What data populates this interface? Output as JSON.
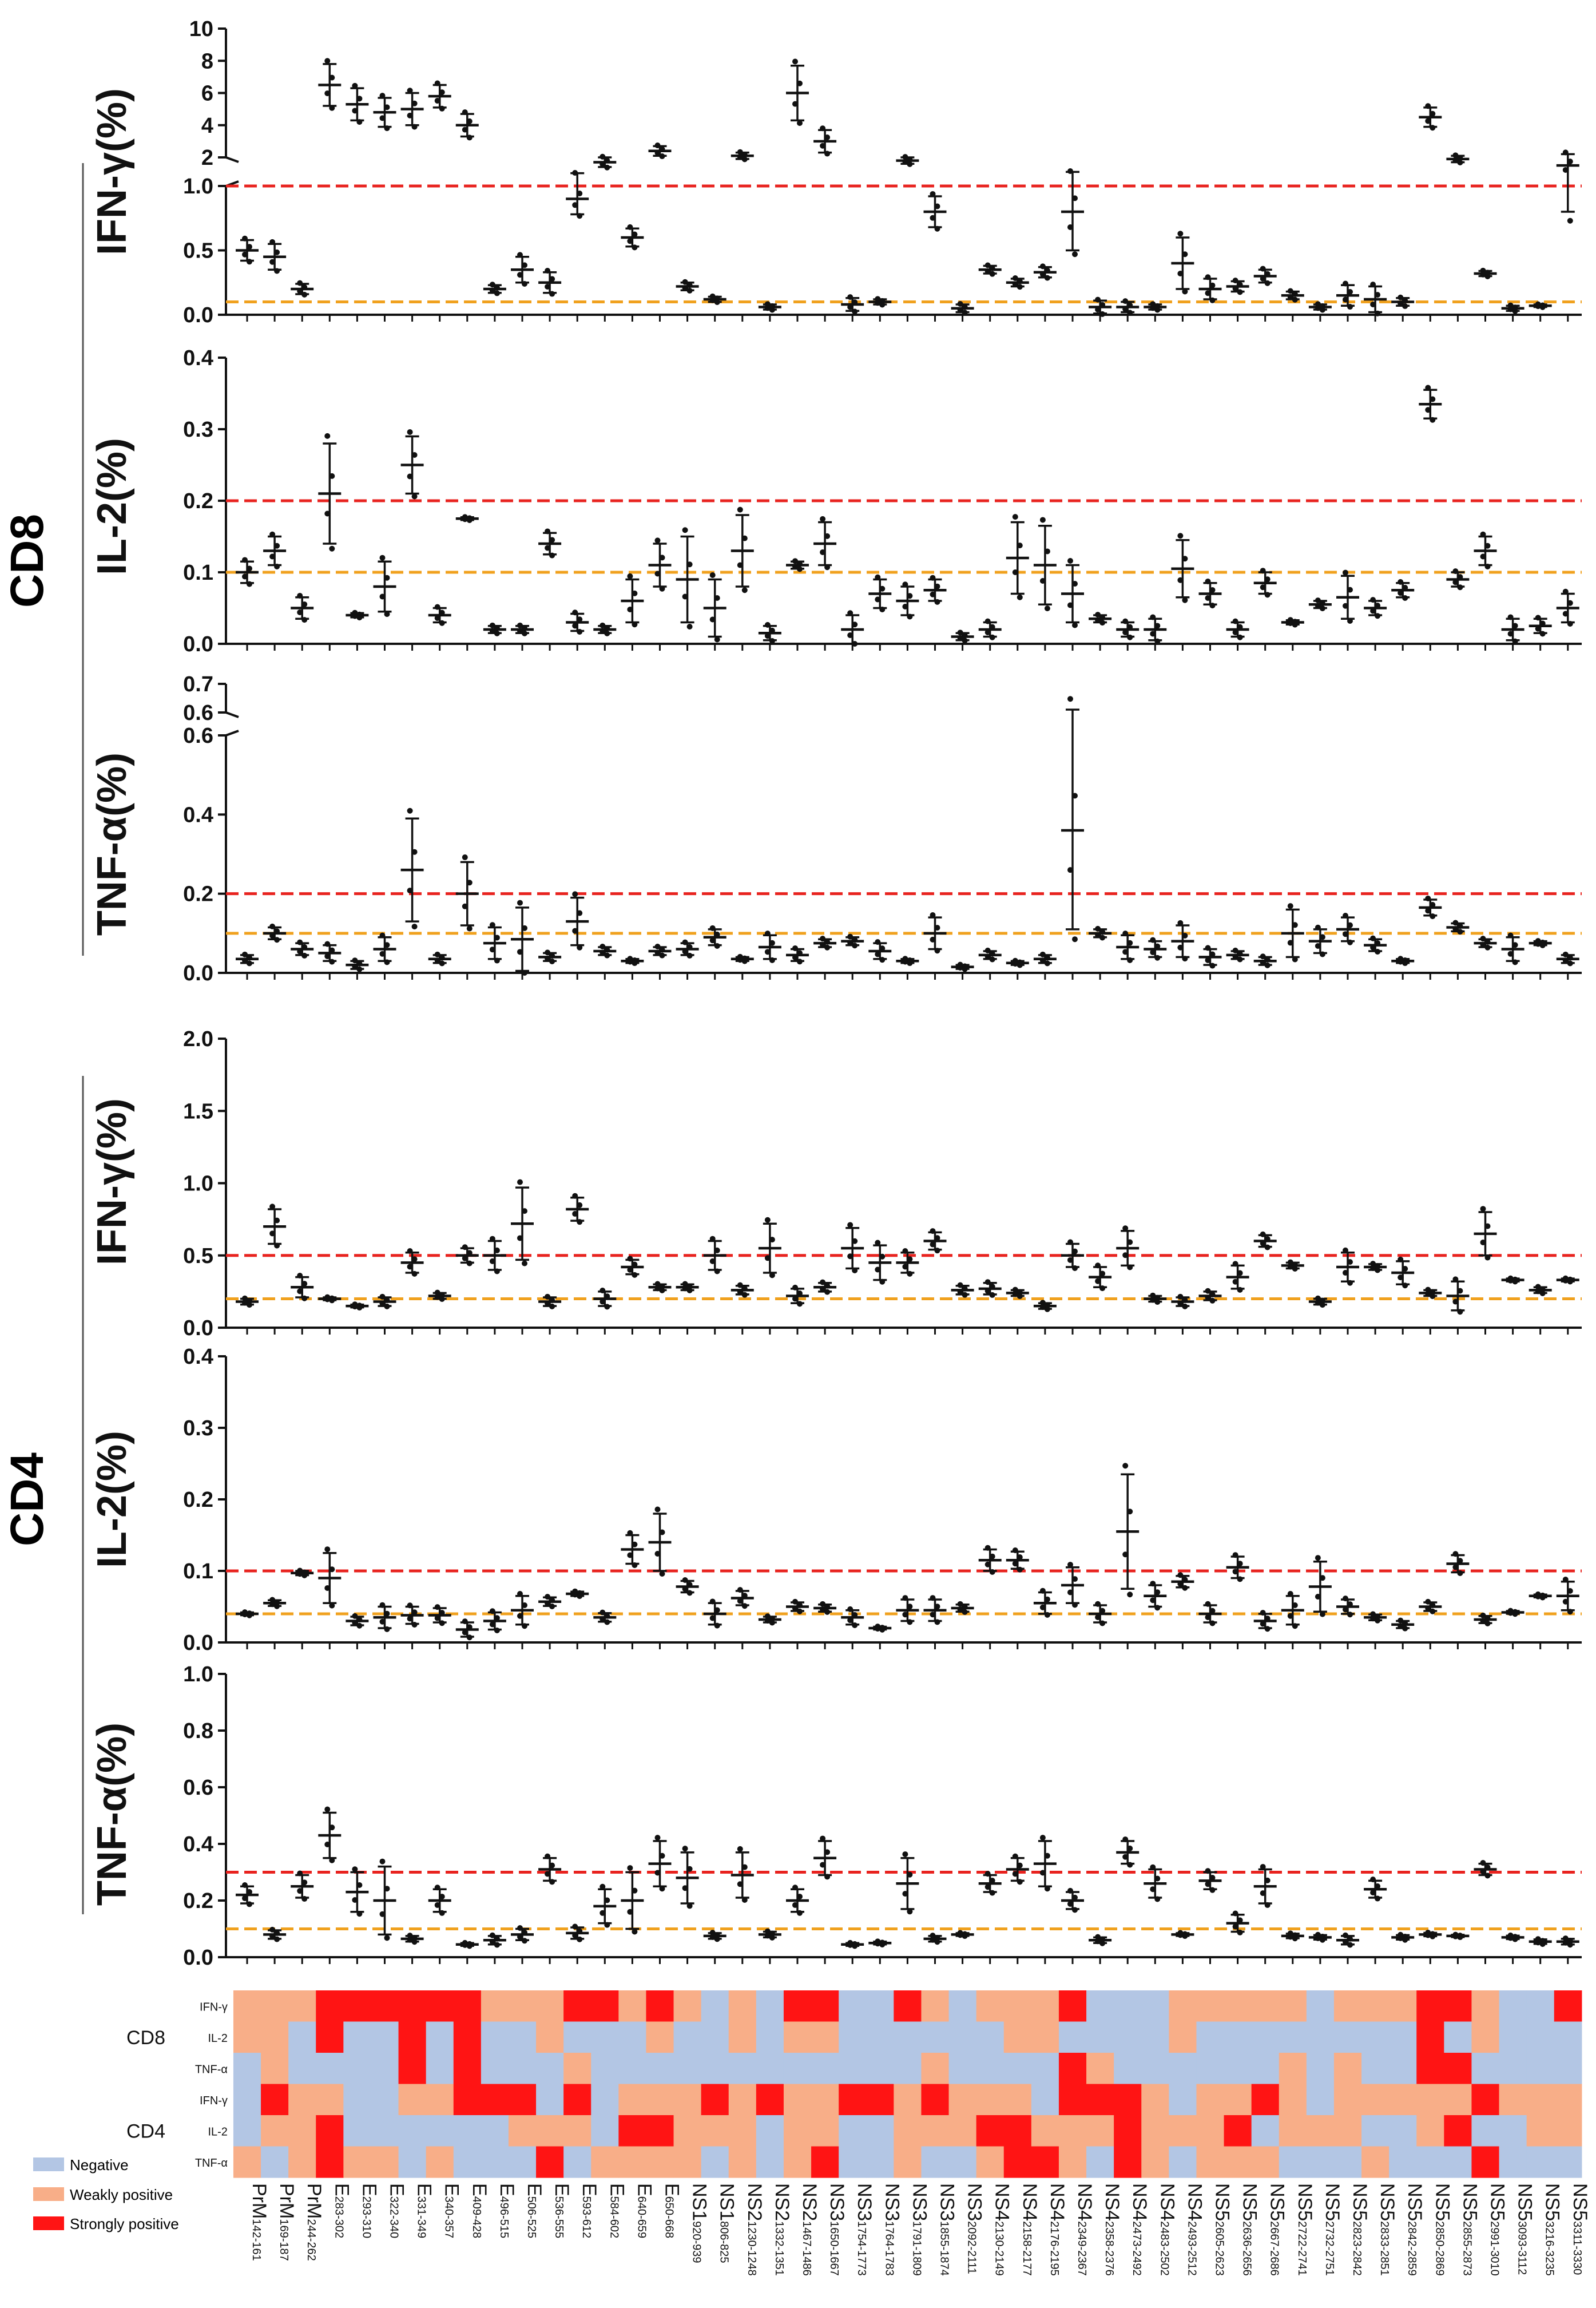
{
  "colors": {
    "strong_line": "#e8231f",
    "weak_line": "#f0a11e",
    "negative": "#b3c6e4",
    "weak": "#f8ae88",
    "strong": "#ff1414",
    "ink": "#111111"
  },
  "group_labels": {
    "cd8": "CD8",
    "cd4": "CD4"
  },
  "peptides": [
    [
      "PrM",
      "142-161"
    ],
    [
      "PrM",
      "169-187"
    ],
    [
      "PrM",
      "244-262"
    ],
    [
      "E",
      "283-302"
    ],
    [
      "E",
      "293-310"
    ],
    [
      "E",
      "322-340"
    ],
    [
      "E",
      "331-349"
    ],
    [
      "E",
      "340-357"
    ],
    [
      "E",
      "409-428"
    ],
    [
      "E",
      "496-515"
    ],
    [
      "E",
      "506-525"
    ],
    [
      "E",
      "536-555"
    ],
    [
      "E",
      "593-612"
    ],
    [
      "E",
      "584-602"
    ],
    [
      "E",
      "640-659"
    ],
    [
      "E",
      "650-668"
    ],
    [
      "NS1",
      "920-939"
    ],
    [
      "NS1",
      "806-825"
    ],
    [
      "NS2",
      "1230-1248"
    ],
    [
      "NS2",
      "1332-1351"
    ],
    [
      "NS2",
      "1467-1486"
    ],
    [
      "NS3",
      "1650-1667"
    ],
    [
      "NS3",
      "1754-1773"
    ],
    [
      "NS3",
      "1764-1783"
    ],
    [
      "NS3",
      "1791-1809"
    ],
    [
      "NS3",
      "1855-1874"
    ],
    [
      "NS3",
      "2092-2111"
    ],
    [
      "NS4",
      "2130-2149"
    ],
    [
      "NS4",
      "2158-2177"
    ],
    [
      "NS4",
      "2176-2195"
    ],
    [
      "NS4",
      "2349-2367"
    ],
    [
      "NS4",
      "2358-2376"
    ],
    [
      "NS4",
      "2473-2492"
    ],
    [
      "NS4",
      "2483-2502"
    ],
    [
      "NS4",
      "2493-2512"
    ],
    [
      "NS5",
      "2605-2623"
    ],
    [
      "NS5",
      "2636-2656"
    ],
    [
      "NS5",
      "2667-2686"
    ],
    [
      "NS5",
      "2722-2741"
    ],
    [
      "NS5",
      "2732-2751"
    ],
    [
      "NS5",
      "2823-2842"
    ],
    [
      "NS5",
      "2833-2851"
    ],
    [
      "NS5",
      "2842-2859"
    ],
    [
      "NS5",
      "2850-2869"
    ],
    [
      "NS5",
      "2855-2873"
    ],
    [
      "NS5",
      "2991-3010"
    ],
    [
      "NS5",
      "3093-3112"
    ],
    [
      "NS5",
      "3216-3235"
    ],
    [
      "NS5",
      "3311-3330"
    ]
  ],
  "chart_data": [
    {
      "type": "scatter",
      "id": "cd8_ifng",
      "ylabel": "IFN-γ(%)",
      "broken_axis": true,
      "upper": {
        "ylim": [
          2,
          10
        ],
        "ticks": [
          "2",
          "4",
          "6",
          "8",
          "10"
        ]
      },
      "lower": {
        "ylim": [
          0,
          1.0
        ],
        "ticks": [
          "0.0",
          "0.5",
          "1.0"
        ]
      },
      "strong_threshold": 1.0,
      "weak_threshold": 0.1,
      "means": [
        0.5,
        0.45,
        0.2,
        6.5,
        5.3,
        4.8,
        5.0,
        5.8,
        4.0,
        0.2,
        0.35,
        0.25,
        0.9,
        1.7,
        0.6,
        2.4,
        0.22,
        0.12,
        2.1,
        0.06,
        6.0,
        3.0,
        0.08,
        0.1,
        1.8,
        0.8,
        0.05,
        0.35,
        0.25,
        0.33,
        0.8,
        0.06,
        0.06,
        0.06,
        0.4,
        0.2,
        0.22,
        0.3,
        0.15,
        0.06,
        0.15,
        0.12,
        0.1,
        4.5,
        1.9,
        0.32,
        0.05,
        0.07,
        1.5
      ],
      "spreads": [
        0.08,
        0.1,
        0.04,
        1.3,
        1.0,
        0.9,
        1.0,
        0.7,
        0.7,
        0.03,
        0.1,
        0.08,
        0.12,
        0.3,
        0.07,
        0.3,
        0.03,
        0.02,
        0.2,
        0.02,
        1.7,
        0.7,
        0.05,
        0.02,
        0.2,
        0.12,
        0.03,
        0.03,
        0.03,
        0.04,
        0.3,
        0.05,
        0.04,
        0.02,
        0.2,
        0.08,
        0.04,
        0.05,
        0.03,
        0.02,
        0.08,
        0.1,
        0.03,
        0.6,
        0.2,
        0.02,
        0.02,
        0.01,
        0.7
      ]
    },
    {
      "type": "scatter",
      "id": "cd8_il2",
      "ylabel": "IL-2(%)",
      "ylim": [
        0,
        0.4
      ],
      "ticks": [
        "0.0",
        "0.1",
        "0.2",
        "0.3",
        "0.4"
      ],
      "strong_threshold": 0.2,
      "weak_threshold": 0.1,
      "means": [
        0.1,
        0.13,
        0.05,
        0.21,
        0.04,
        0.08,
        0.25,
        0.04,
        0.175,
        0.02,
        0.02,
        0.14,
        0.03,
        0.02,
        0.06,
        0.11,
        0.09,
        0.05,
        0.13,
        0.015,
        0.11,
        0.14,
        0.02,
        0.07,
        0.06,
        0.075,
        0.01,
        0.02,
        0.12,
        0.11,
        0.07,
        0.035,
        0.02,
        0.02,
        0.105,
        0.07,
        0.02,
        0.085,
        0.03,
        0.055,
        0.065,
        0.05,
        0.075,
        0.335,
        0.09,
        0.13,
        0.02,
        0.025,
        0.05
      ],
      "spreads": [
        0.015,
        0.02,
        0.015,
        0.07,
        0.003,
        0.035,
        0.04,
        0.01,
        0.002,
        0.005,
        0.005,
        0.015,
        0.012,
        0.005,
        0.03,
        0.03,
        0.06,
        0.04,
        0.05,
        0.01,
        0.005,
        0.03,
        0.02,
        0.02,
        0.02,
        0.015,
        0.005,
        0.01,
        0.05,
        0.055,
        0.04,
        0.005,
        0.01,
        0.015,
        0.04,
        0.015,
        0.01,
        0.015,
        0.003,
        0.005,
        0.03,
        0.01,
        0.01,
        0.02,
        0.01,
        0.02,
        0.015,
        0.01,
        0.02
      ]
    },
    {
      "type": "scatter",
      "id": "cd8_tnfa",
      "ylabel": "TNF-α(%)",
      "broken_axis": true,
      "upper": {
        "ylim": [
          0.6,
          0.7
        ],
        "ticks": [
          "0.6",
          "0.7"
        ]
      },
      "lower": {
        "ylim": [
          0,
          0.6
        ],
        "ticks": [
          "0.0",
          "0.2",
          "0.4",
          "0.6"
        ]
      },
      "strong_threshold": 0.2,
      "weak_threshold": 0.1,
      "means": [
        0.035,
        0.1,
        0.06,
        0.05,
        0.02,
        0.06,
        0.26,
        0.035,
        0.2,
        0.075,
        0.085,
        0.04,
        0.13,
        0.055,
        0.03,
        0.055,
        0.06,
        0.09,
        0.035,
        0.065,
        0.045,
        0.075,
        0.08,
        0.055,
        0.03,
        0.1,
        0.015,
        0.045,
        0.025,
        0.035,
        0.36,
        0.1,
        0.065,
        0.06,
        0.08,
        0.04,
        0.045,
        0.03,
        0.1,
        0.08,
        0.11,
        0.07,
        0.03,
        0.165,
        0.115,
        0.075,
        0.06,
        0.075,
        0.035
      ],
      "spreads": [
        0.01,
        0.015,
        0.015,
        0.02,
        0.01,
        0.03,
        0.13,
        0.01,
        0.08,
        0.04,
        0.08,
        0.01,
        0.06,
        0.01,
        0.005,
        0.01,
        0.015,
        0.02,
        0.005,
        0.03,
        0.015,
        0.01,
        0.01,
        0.02,
        0.005,
        0.04,
        0.005,
        0.01,
        0.005,
        0.01,
        0.25,
        0.01,
        0.03,
        0.02,
        0.04,
        0.02,
        0.01,
        0.01,
        0.06,
        0.03,
        0.03,
        0.015,
        0.005,
        0.02,
        0.01,
        0.01,
        0.03,
        0.005,
        0.01
      ]
    },
    {
      "type": "scatter",
      "id": "cd4_ifng",
      "ylabel": "IFN-γ(%)",
      "ylim": [
        0,
        2.0
      ],
      "ticks": [
        "0.0",
        "0.5",
        "1.0",
        "1.5",
        "2.0"
      ],
      "strong_threshold": 0.5,
      "weak_threshold": 0.2,
      "means": [
        0.18,
        0.7,
        0.28,
        0.2,
        0.15,
        0.18,
        0.45,
        0.22,
        0.5,
        0.5,
        0.72,
        0.18,
        0.82,
        0.2,
        0.42,
        0.28,
        0.28,
        0.5,
        0.26,
        0.55,
        0.22,
        0.28,
        0.55,
        0.45,
        0.45,
        0.6,
        0.26,
        0.27,
        0.24,
        0.15,
        0.5,
        0.35,
        0.55,
        0.2,
        0.18,
        0.22,
        0.35,
        0.6,
        0.43,
        0.18,
        0.42,
        0.42,
        0.38,
        0.24,
        0.22,
        0.65,
        0.33,
        0.26,
        0.33
      ],
      "spreads": [
        0.02,
        0.12,
        0.07,
        0.01,
        0.01,
        0.03,
        0.07,
        0.02,
        0.05,
        0.1,
        0.25,
        0.03,
        0.08,
        0.05,
        0.05,
        0.02,
        0.02,
        0.1,
        0.03,
        0.17,
        0.05,
        0.03,
        0.14,
        0.12,
        0.07,
        0.06,
        0.03,
        0.04,
        0.02,
        0.02,
        0.08,
        0.07,
        0.12,
        0.02,
        0.03,
        0.03,
        0.08,
        0.04,
        0.02,
        0.02,
        0.1,
        0.02,
        0.08,
        0.02,
        0.1,
        0.15,
        0.01,
        0.02,
        0.01
      ]
    },
    {
      "type": "scatter",
      "id": "cd4_il2",
      "ylabel": "IL-2(%)",
      "ylim": [
        0,
        0.4
      ],
      "ticks": [
        "0.0",
        "0.1",
        "0.2",
        "0.3",
        "0.4"
      ],
      "strong_threshold": 0.1,
      "weak_threshold": 0.04,
      "means": [
        0.04,
        0.055,
        0.097,
        0.09,
        0.03,
        0.035,
        0.038,
        0.038,
        0.018,
        0.03,
        0.045,
        0.057,
        0.068,
        0.035,
        0.13,
        0.14,
        0.078,
        0.04,
        0.062,
        0.032,
        0.05,
        0.048,
        0.035,
        0.02,
        0.045,
        0.045,
        0.048,
        0.115,
        0.115,
        0.055,
        0.08,
        0.04,
        0.155,
        0.065,
        0.085,
        0.04,
        0.105,
        0.03,
        0.045,
        0.078,
        0.05,
        0.035,
        0.025,
        0.05,
        0.11,
        0.032,
        0.042,
        0.065,
        0.065
      ],
      "spreads": [
        0.002,
        0.004,
        0.003,
        0.035,
        0.006,
        0.015,
        0.012,
        0.01,
        0.01,
        0.012,
        0.02,
        0.006,
        0.003,
        0.006,
        0.02,
        0.04,
        0.008,
        0.015,
        0.01,
        0.004,
        0.006,
        0.005,
        0.01,
        0.002,
        0.015,
        0.015,
        0.005,
        0.015,
        0.012,
        0.015,
        0.025,
        0.012,
        0.08,
        0.015,
        0.008,
        0.012,
        0.015,
        0.01,
        0.02,
        0.035,
        0.01,
        0.004,
        0.005,
        0.006,
        0.012,
        0.005,
        0.002,
        0.002,
        0.02
      ]
    },
    {
      "type": "scatter",
      "id": "cd4_tnfa",
      "ylabel": "TNF-α(%)",
      "ylim": [
        0,
        1.0
      ],
      "ticks": [
        "0.0",
        "0.2",
        "0.4",
        "0.6",
        "0.8",
        "1.0"
      ],
      "strong_threshold": 0.3,
      "weak_threshold": 0.1,
      "means": [
        0.22,
        0.08,
        0.25,
        0.43,
        0.23,
        0.2,
        0.065,
        0.2,
        0.045,
        0.06,
        0.08,
        0.31,
        0.085,
        0.18,
        0.2,
        0.33,
        0.28,
        0.075,
        0.29,
        0.08,
        0.2,
        0.35,
        0.045,
        0.05,
        0.26,
        0.065,
        0.08,
        0.26,
        0.31,
        0.33,
        0.2,
        0.06,
        0.37,
        0.26,
        0.08,
        0.27,
        0.12,
        0.25,
        0.075,
        0.07,
        0.06,
        0.24,
        0.07,
        0.08,
        0.075,
        0.31,
        0.07,
        0.055,
        0.055
      ],
      "spreads": [
        0.03,
        0.015,
        0.04,
        0.08,
        0.07,
        0.12,
        0.01,
        0.04,
        0.005,
        0.015,
        0.02,
        0.04,
        0.02,
        0.06,
        0.1,
        0.08,
        0.09,
        0.01,
        0.08,
        0.01,
        0.04,
        0.06,
        0.005,
        0.005,
        0.09,
        0.01,
        0.005,
        0.03,
        0.04,
        0.08,
        0.03,
        0.01,
        0.04,
        0.05,
        0.005,
        0.03,
        0.03,
        0.06,
        0.008,
        0.008,
        0.015,
        0.03,
        0.008,
        0.006,
        0.004,
        0.02,
        0.006,
        0.008,
        0.01
      ]
    },
    {
      "type": "heatmap",
      "id": "response_heatmap",
      "row_groups": [
        "CD8",
        "CD4"
      ],
      "row_labels": [
        "IFN-γ",
        "IL-2",
        "TNF-α",
        "IFN-γ",
        "IL-2",
        "TNF-α"
      ],
      "scale": [
        "Negative",
        "Weakly positive",
        "Strongly positive"
      ],
      "cells": [
        [
          1,
          1,
          1,
          2,
          2,
          2,
          2,
          2,
          2,
          1,
          1,
          1,
          2,
          2,
          1,
          2,
          1,
          0,
          1,
          0,
          2,
          2,
          0,
          0,
          2,
          1,
          0,
          1,
          1,
          1,
          2,
          0,
          0,
          0,
          1,
          1,
          1,
          1,
          1,
          0,
          1,
          1,
          1,
          2,
          2,
          1,
          0,
          0,
          2
        ],
        [
          1,
          1,
          0,
          2,
          0,
          0,
          2,
          0,
          2,
          0,
          0,
          1,
          0,
          0,
          0,
          1,
          0,
          0,
          1,
          0,
          1,
          1,
          0,
          0,
          0,
          0,
          0,
          0,
          1,
          1,
          0,
          0,
          0,
          0,
          1,
          0,
          0,
          0,
          0,
          0,
          0,
          0,
          0,
          2,
          0,
          1,
          0,
          0,
          0
        ],
        [
          0,
          1,
          0,
          0,
          0,
          0,
          2,
          0,
          2,
          0,
          0,
          0,
          1,
          0,
          0,
          0,
          0,
          0,
          0,
          0,
          0,
          0,
          0,
          0,
          0,
          1,
          0,
          0,
          0,
          0,
          2,
          1,
          0,
          0,
          0,
          0,
          0,
          0,
          1,
          0,
          1,
          0,
          0,
          2,
          2,
          0,
          0,
          0,
          0
        ],
        [
          0,
          2,
          1,
          1,
          0,
          0,
          1,
          1,
          2,
          2,
          2,
          0,
          2,
          0,
          1,
          1,
          1,
          2,
          1,
          2,
          1,
          1,
          2,
          2,
          1,
          2,
          1,
          1,
          1,
          0,
          2,
          2,
          2,
          1,
          0,
          1,
          1,
          2,
          1,
          0,
          1,
          1,
          1,
          1,
          1,
          2,
          1,
          1,
          1
        ],
        [
          0,
          1,
          1,
          2,
          0,
          0,
          0,
          0,
          0,
          0,
          1,
          1,
          1,
          0,
          2,
          2,
          1,
          1,
          1,
          0,
          1,
          1,
          0,
          0,
          1,
          1,
          1,
          2,
          2,
          1,
          1,
          1,
          2,
          1,
          1,
          1,
          2,
          0,
          1,
          1,
          1,
          0,
          0,
          1,
          2,
          0,
          0,
          1,
          1
        ],
        [
          1,
          0,
          1,
          2,
          1,
          1,
          0,
          1,
          0,
          0,
          0,
          2,
          0,
          1,
          1,
          1,
          1,
          0,
          1,
          0,
          1,
          2,
          0,
          0,
          1,
          0,
          0,
          1,
          2,
          2,
          1,
          0,
          2,
          1,
          0,
          1,
          1,
          1,
          0,
          0,
          0,
          1,
          0,
          0,
          0,
          2,
          0,
          0,
          0
        ]
      ]
    }
  ]
}
